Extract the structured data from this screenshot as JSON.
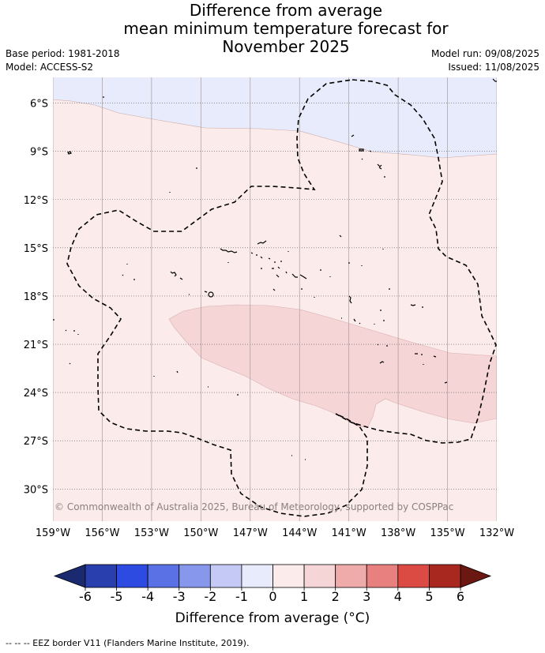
{
  "title": {
    "line1": "Difference from average",
    "line2": "mean minimum temperature forecast for",
    "line3": "November 2025"
  },
  "meta": {
    "base_period": "Base period: 1981-2018",
    "model": "Model: ACCESS-S2",
    "model_run": "Model run: 09/08/2025",
    "issued": "Issued: 11/08/2025"
  },
  "map": {
    "lon_range": [
      -159,
      -132
    ],
    "lat_range": [
      -32,
      -4.4
    ],
    "lat_ticks": [
      "6°S",
      "9°S",
      "12°S",
      "15°S",
      "18°S",
      "21°S",
      "24°S",
      "27°S",
      "30°S"
    ],
    "lon_ticks": [
      "159°W",
      "156°W",
      "153°W",
      "150°W",
      "147°W",
      "144°W",
      "141°W",
      "138°W",
      "135°W",
      "132°W"
    ],
    "copyright": "© Commonwealth of Australia 2025, Bureau of Meteorology, supported by COSPPac",
    "fill_colors": {
      "cool_-1_0": "#e8ebfb",
      "warm_0_1": "#fcebeb",
      "warm_1_2": "#f5d5d5"
    },
    "eez_border": "dashed"
  },
  "colorbar": {
    "ticks": [
      "-6",
      "-5",
      "-4",
      "-3",
      "-2",
      "-1",
      "0",
      "1",
      "2",
      "3",
      "4",
      "5",
      "6"
    ],
    "colors": [
      "#2a3fae",
      "#2d4be0",
      "#5a71e6",
      "#8797ec",
      "#c4caf5",
      "#e8ebfb",
      "#fcebeb",
      "#f5d5d5",
      "#efaaaa",
      "#e88080",
      "#db4a43",
      "#a82820"
    ],
    "under_color": "#1b2a6e",
    "over_color": "#6b1712",
    "label": "Difference from average (°C)"
  },
  "footnote": "--  --  -- EEZ border V11 (Flanders Marine Institute, 2019)."
}
